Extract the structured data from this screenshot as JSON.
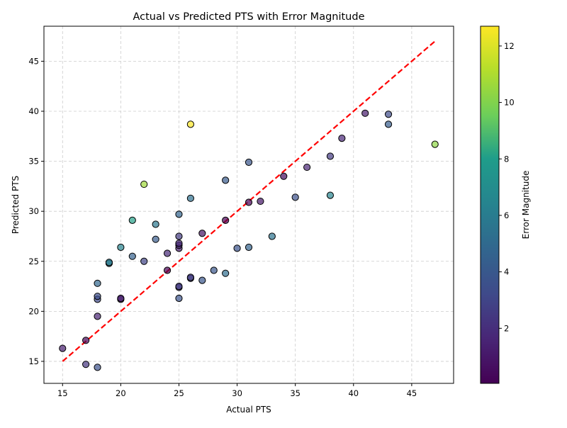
{
  "chart_data": {
    "type": "scatter",
    "title": "Actual vs Predicted PTS with Error Magnitude",
    "xlabel": "Actual PTS",
    "ylabel": "Predicted PTS",
    "xlim": [
      13.4,
      48.6
    ],
    "ylim": [
      12.8,
      48.5
    ],
    "xticks": [
      15,
      20,
      25,
      30,
      35,
      40,
      45
    ],
    "yticks": [
      15,
      20,
      25,
      30,
      35,
      40,
      45
    ],
    "grid": true,
    "reference_line": {
      "from": [
        15,
        15
      ],
      "to": [
        47,
        47
      ],
      "color": "#ff0000",
      "style": "dashed"
    },
    "colorbar": {
      "label": "Error Magnitude",
      "range": [
        0.05,
        12.7
      ],
      "ticks": [
        2,
        4,
        6,
        8,
        10,
        12
      ],
      "colormap": "viridis"
    },
    "points": [
      {
        "x": 15,
        "y": 16.3
      },
      {
        "x": 17,
        "y": 17.1
      },
      {
        "x": 17,
        "y": 14.7
      },
      {
        "x": 18,
        "y": 14.4
      },
      {
        "x": 18,
        "y": 19.5
      },
      {
        "x": 18,
        "y": 21.2
      },
      {
        "x": 18,
        "y": 21.5
      },
      {
        "x": 18,
        "y": 22.8
      },
      {
        "x": 19,
        "y": 24.8
      },
      {
        "x": 19,
        "y": 24.9
      },
      {
        "x": 20,
        "y": 21.2
      },
      {
        "x": 20,
        "y": 21.3
      },
      {
        "x": 20,
        "y": 26.4
      },
      {
        "x": 21,
        "y": 25.5
      },
      {
        "x": 21,
        "y": 29.1
      },
      {
        "x": 22,
        "y": 25.0
      },
      {
        "x": 22,
        "y": 32.7
      },
      {
        "x": 23,
        "y": 27.2
      },
      {
        "x": 23,
        "y": 28.7
      },
      {
        "x": 24,
        "y": 24.1
      },
      {
        "x": 24,
        "y": 25.8
      },
      {
        "x": 25,
        "y": 21.3
      },
      {
        "x": 25,
        "y": 22.4
      },
      {
        "x": 25,
        "y": 22.5
      },
      {
        "x": 25,
        "y": 26.3
      },
      {
        "x": 25,
        "y": 26.6
      },
      {
        "x": 25,
        "y": 26.8
      },
      {
        "x": 25,
        "y": 27.5
      },
      {
        "x": 25,
        "y": 29.7
      },
      {
        "x": 26,
        "y": 23.3
      },
      {
        "x": 26,
        "y": 23.4
      },
      {
        "x": 26,
        "y": 31.3
      },
      {
        "x": 26,
        "y": 38.7
      },
      {
        "x": 27,
        "y": 23.1
      },
      {
        "x": 27,
        "y": 27.8
      },
      {
        "x": 28,
        "y": 24.1
      },
      {
        "x": 29,
        "y": 23.8
      },
      {
        "x": 29,
        "y": 29.1
      },
      {
        "x": 29,
        "y": 33.1
      },
      {
        "x": 30,
        "y": 26.3
      },
      {
        "x": 31,
        "y": 26.4
      },
      {
        "x": 31,
        "y": 30.9
      },
      {
        "x": 31,
        "y": 34.9
      },
      {
        "x": 32,
        "y": 31.0
      },
      {
        "x": 33,
        "y": 27.5
      },
      {
        "x": 34,
        "y": 33.5
      },
      {
        "x": 35,
        "y": 31.4
      },
      {
        "x": 36,
        "y": 34.4
      },
      {
        "x": 38,
        "y": 31.6
      },
      {
        "x": 38,
        "y": 35.5
      },
      {
        "x": 39,
        "y": 37.3
      },
      {
        "x": 41,
        "y": 39.8
      },
      {
        "x": 43,
        "y": 38.7
      },
      {
        "x": 43,
        "y": 39.7
      },
      {
        "x": 47,
        "y": 36.7
      }
    ]
  }
}
